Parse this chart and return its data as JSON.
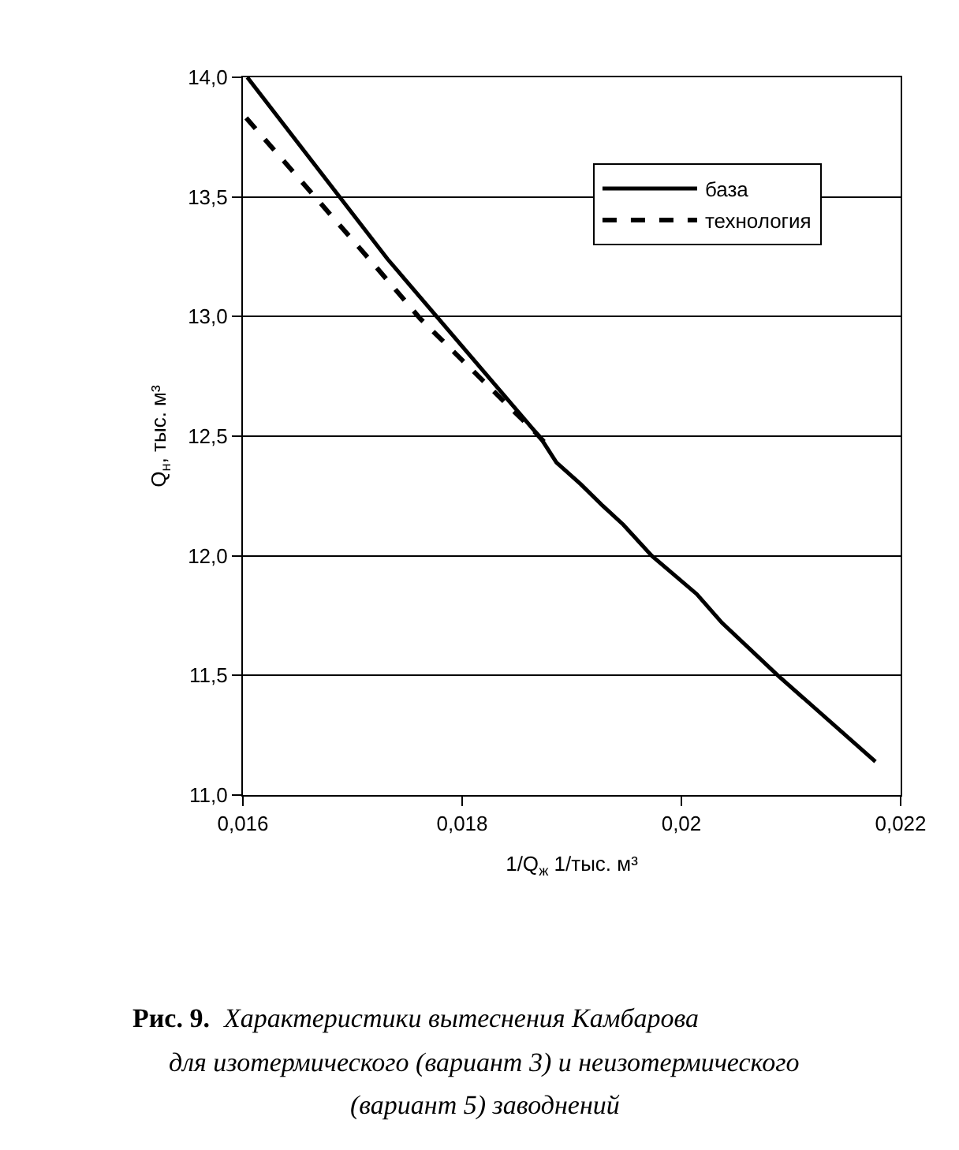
{
  "chart_data": {
    "type": "line",
    "xlabel": "1/Q$_{ж}$ 1/тыс. м³",
    "ylabel": "Q$_{н}$, тыс. м³",
    "series": [
      {
        "name": "база",
        "color": "#000000",
        "line_style": "solid",
        "x": [
          0.01604,
          0.01732,
          0.01872,
          0.01886,
          0.01908,
          0.01928,
          0.01947,
          0.01973,
          0.02014,
          0.02037,
          0.02088,
          0.02177
        ],
        "values": [
          14.0,
          13.24,
          12.49,
          12.39,
          12.3,
          12.21,
          12.13,
          12.0,
          11.84,
          11.72,
          11.5,
          11.14
        ]
      },
      {
        "name": "технология",
        "color": "#000000",
        "line_style": "dashed",
        "x": [
          0.01603,
          0.01721,
          0.01762,
          0.01868,
          0.0188
        ],
        "values": [
          13.83,
          13.21,
          12.99,
          12.51,
          12.45
        ]
      }
    ],
    "xlim": [
      0.016,
      0.022
    ],
    "xticks": [
      {
        "value": 0.016,
        "label": "0,016"
      },
      {
        "value": 0.018,
        "label": "0,018"
      },
      {
        "value": 0.02,
        "label": "0,02"
      },
      {
        "value": 0.022,
        "label": "0,022"
      }
    ],
    "ylim": [
      11.0,
      14.0
    ],
    "yticks": [
      {
        "value": 11.0,
        "label": "11,0"
      },
      {
        "value": 11.5,
        "label": "11,5"
      },
      {
        "value": 12.0,
        "label": "12,0"
      },
      {
        "value": 12.5,
        "label": "12,5"
      },
      {
        "value": 13.0,
        "label": "13,0"
      },
      {
        "value": 13.5,
        "label": "13,5"
      },
      {
        "value": 14.0,
        "label": "14,0"
      }
    ],
    "grid": "y",
    "legend": "top right",
    "marker": "none",
    "annotations": [
      "Рис. 9.",
      "Характеристики вытеснения Камбарова",
      "для изотермического (вариант 3) и неизотермического",
      "(вариант 5) заводнений"
    ]
  }
}
